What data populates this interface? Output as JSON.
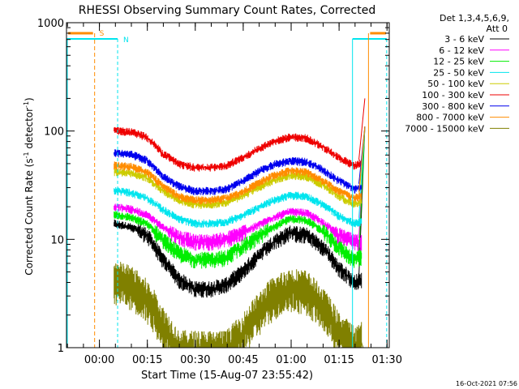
{
  "chart_data": {
    "type": "line",
    "title": "RHESSI Observing Summary Count Rates, Corrected",
    "xlabel": "Start Time (15-Aug-07 23:55:42)",
    "ylabel": "Corrected Count Rate (s",
    "ylabel_sup1": "-1",
    "ylabel_mid": " detector",
    "ylabel_sup2": "-1",
    "ylabel_end": ")",
    "y_scale": "log",
    "ylim": [
      1,
      1000
    ],
    "xlim_minutes": [
      -6,
      95
    ],
    "x_ticks": [
      {
        "label": "00:00",
        "minutes": 4.3
      },
      {
        "label": "00:15",
        "minutes": 19.3
      },
      {
        "label": "00:30",
        "minutes": 34.3
      },
      {
        "label": "00:45",
        "minutes": 49.3
      },
      {
        "label": "01:00",
        "minutes": 64.3
      },
      {
        "label": "01:15",
        "minutes": 79.3
      },
      {
        "label": "01:30",
        "minutes": 94.3
      }
    ],
    "y_ticks": [
      {
        "label": "1",
        "value": 1
      },
      {
        "label": "10",
        "value": 10
      },
      {
        "label": "100",
        "value": 100
      },
      {
        "label": "1000",
        "value": 1000
      }
    ],
    "legend_header": [
      "Det 1,3,4,5,6,9,",
      "Att 0"
    ],
    "legend_placement": "right",
    "series": [
      {
        "name": "3 - 6 keV",
        "color": "#000000",
        "data_start_min": 8.9,
        "data_end_min": 86.3,
        "x": [
          9,
          14,
          19,
          24,
          29,
          34,
          39,
          44,
          49,
          54,
          59,
          64,
          69,
          74,
          79,
          84,
          86
        ],
        "y": [
          14,
          13,
          11,
          6.5,
          4.3,
          3.5,
          3.5,
          3.8,
          5.0,
          7.0,
          9.5,
          11.5,
          11.0,
          8.5,
          5.5,
          4.0,
          4.2
        ]
      },
      {
        "name": "6 - 12 keV",
        "color": "#ff00ff",
        "data_start_min": 8.9,
        "data_end_min": 86.3,
        "x": [
          9,
          14,
          19,
          24,
          29,
          34,
          39,
          44,
          49,
          54,
          59,
          64,
          69,
          74,
          79,
          84,
          86
        ],
        "y": [
          20,
          19,
          17,
          13,
          10.5,
          9.5,
          9.5,
          10,
          11.5,
          13.5,
          16,
          18,
          17.5,
          14.5,
          11,
          9.5,
          9.5
        ]
      },
      {
        "name": "12 - 25 keV",
        "color": "#00ee00",
        "data_start_min": 8.9,
        "data_end_min": 86.3,
        "x": [
          9,
          14,
          19,
          24,
          29,
          34,
          39,
          44,
          49,
          54,
          59,
          64,
          69,
          74,
          79,
          84,
          86
        ],
        "y": [
          17,
          16,
          14,
          10,
          7.5,
          6.5,
          6.5,
          6.8,
          8.5,
          10.5,
          13,
          15.5,
          15,
          12,
          8.5,
          6.5,
          6.8
        ]
      },
      {
        "name": "25 - 50 keV",
        "color": "#00e5ee",
        "data_start_min": 8.9,
        "data_end_min": 86.3,
        "x": [
          9,
          14,
          19,
          24,
          29,
          34,
          39,
          44,
          49,
          54,
          59,
          64,
          69,
          74,
          79,
          84,
          86
        ],
        "y": [
          28,
          27,
          24,
          19,
          15.5,
          14,
          14,
          14.5,
          16.5,
          19.5,
          23,
          25.5,
          25,
          21,
          16.5,
          14,
          14.5
        ]
      },
      {
        "name": "50 - 100 keV",
        "color": "#cccc00",
        "data_start_min": 8.9,
        "data_end_min": 86.3,
        "x": [
          9,
          14,
          19,
          24,
          29,
          34,
          39,
          44,
          49,
          54,
          59,
          64,
          69,
          74,
          79,
          84,
          86
        ],
        "y": [
          42,
          41,
          37,
          28,
          23,
          21,
          21,
          22,
          25,
          30,
          35,
          39,
          38,
          32,
          25,
          21,
          22
        ]
      },
      {
        "name": "100 - 300 keV",
        "color": "#ee0000",
        "data_start_min": 8.9,
        "data_end_min": 86.3,
        "x": [
          9,
          14,
          19,
          24,
          29,
          34,
          39,
          44,
          49,
          54,
          59,
          64,
          69,
          74,
          79,
          84,
          86
        ],
        "y": [
          100,
          98,
          88,
          62,
          50,
          46,
          46,
          48,
          56,
          68,
          80,
          88,
          86,
          72,
          57,
          48,
          50
        ]
      },
      {
        "name": "300 - 800 keV",
        "color": "#0000ee",
        "data_start_min": 8.9,
        "data_end_min": 86.3,
        "x": [
          9,
          14,
          19,
          24,
          29,
          34,
          39,
          44,
          49,
          54,
          59,
          64,
          69,
          74,
          79,
          84,
          86
        ],
        "y": [
          63,
          61,
          54,
          38,
          31,
          28,
          28,
          29,
          34,
          42,
          49,
          53,
          52,
          44,
          35,
          29,
          30
        ]
      },
      {
        "name": "800 - 7000 keV",
        "color": "#ff8c00",
        "data_start_min": 8.9,
        "data_end_min": 86.3,
        "x": [
          9,
          14,
          19,
          24,
          29,
          34,
          39,
          44,
          49,
          54,
          59,
          64,
          69,
          74,
          79,
          84,
          86
        ],
        "y": [
          48,
          47,
          42,
          31,
          25,
          23,
          23,
          24,
          27,
          33,
          39,
          43,
          42,
          35,
          28,
          24,
          25
        ]
      },
      {
        "name": "7000 - 15000 keV",
        "color": "#808000",
        "data_start_min": 8.9,
        "data_end_min": 86.3,
        "x": [
          9,
          14,
          19,
          24,
          29,
          34,
          39,
          44,
          49,
          54,
          59,
          64,
          69,
          74,
          79,
          84,
          86
        ],
        "y": [
          4.5,
          4.0,
          3.0,
          1.7,
          1.0,
          1.0,
          1.0,
          1.0,
          1.4,
          2.2,
          3.2,
          3.8,
          3.6,
          2.5,
          1.5,
          1.1,
          1.2
        ]
      }
    ],
    "flare_spike": {
      "x_min": 85.5,
      "x_max": 89.2,
      "peak_value": 200
    },
    "saa_intervals": [
      {
        "label": "S",
        "start_min": 2.8,
        "end_min": 88.5,
        "color": "#ff8c00"
      }
    ],
    "night_intervals": [
      {
        "label": "N",
        "start_min": 10.0,
        "end_min": 83.5,
        "color": "#00e5ee"
      }
    ],
    "night_bars_start_min": -6,
    "night_bars_end_min": 94.2,
    "timestamp": "16-Oct-2021 07:56"
  }
}
